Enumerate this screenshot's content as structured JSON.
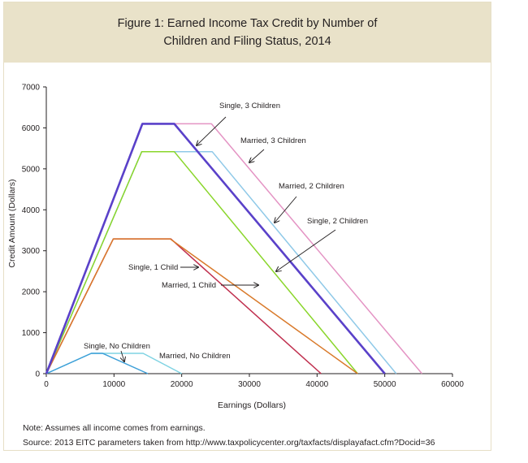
{
  "chart_data": {
    "type": "line",
    "title_line1": "Figure 1: Earned Income Tax Credit by Number of",
    "title_line2": "Children and Filing Status, 2014",
    "xlabel": "Earnings (Dollars)",
    "ylabel": "Credit Amount (Dollars)",
    "xlim": [
      0,
      60000
    ],
    "ylim": [
      0,
      7000
    ],
    "xticks": [
      0,
      10000,
      20000,
      30000,
      40000,
      50000,
      60000
    ],
    "yticks": [
      0,
      1000,
      2000,
      3000,
      4000,
      5000,
      6000,
      7000
    ],
    "grid": false,
    "series": [
      {
        "name": "Single, No Children",
        "color": "#3d9fd8",
        "x": [
          0,
          6650,
          8300,
          15000
        ],
        "y": [
          0,
          496,
          496,
          0
        ]
      },
      {
        "name": "Married, No Children",
        "color": "#7fd3e3",
        "x": [
          0,
          6650,
          14300,
          20000
        ],
        "y": [
          0,
          496,
          496,
          0
        ]
      },
      {
        "name": "Single, 1 Child",
        "color": "#d97a2b",
        "x": [
          0,
          9900,
          18300,
          46000
        ],
        "y": [
          0,
          3290,
          3290,
          0
        ]
      },
      {
        "name": "Married, 1 Child",
        "color": "#c0304f",
        "x": [
          0,
          9900,
          18400,
          40600
        ],
        "y": [
          0,
          3290,
          3290,
          0
        ]
      },
      {
        "name": "Single, 2 Children",
        "color": "#8ad62b",
        "x": [
          0,
          14100,
          18900,
          46000
        ],
        "y": [
          0,
          5420,
          5420,
          0
        ]
      },
      {
        "name": "Married, 2 Children",
        "color": "#8fc9e8",
        "x": [
          0,
          14100,
          24500,
          51700
        ],
        "y": [
          0,
          5420,
          5420,
          0
        ]
      },
      {
        "name": "Single, 3 Children",
        "color": "#5a41c9",
        "x": [
          0,
          14200,
          18900,
          50000
        ],
        "y": [
          0,
          6100,
          6100,
          0
        ]
      },
      {
        "name": "Married, 3 Children",
        "color": "#e494c4",
        "x": [
          0,
          14200,
          24400,
          55500
        ],
        "y": [
          0,
          6100,
          6100,
          0
        ]
      }
    ],
    "annotations": [
      {
        "label": "Single, 3 Children"
      },
      {
        "label": "Married, 3 Children"
      },
      {
        "label": "Married, 2 Children"
      },
      {
        "label": "Single, 2 Children"
      },
      {
        "label": "Single, 1 Child"
      },
      {
        "label": "Married, 1 Child"
      },
      {
        "label": "Single, No Children"
      },
      {
        "label": "Married, No Children"
      }
    ]
  },
  "notes": {
    "note": "Note: Assumes all income comes from earnings.",
    "source": "Source: 2013 EITC parameters taken from http://www.taxpolicycenter.org/taxfacts/displayafact.cfm?Docid=36"
  }
}
